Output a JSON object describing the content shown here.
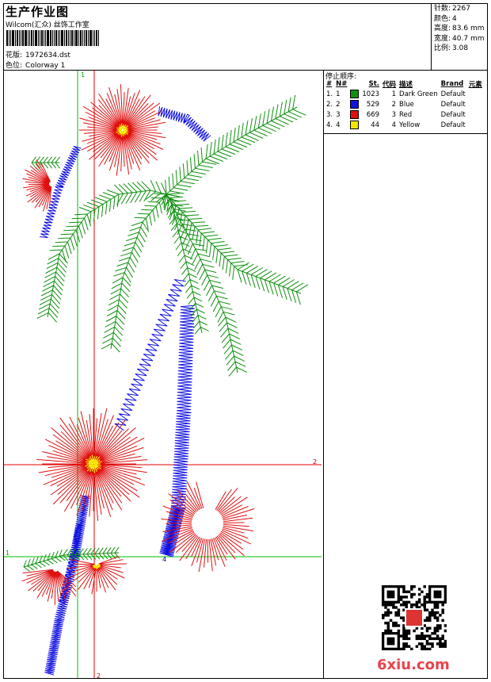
{
  "header": {
    "title": "生产作业图",
    "company": "Wilcom(汇众) 丝饰工作室",
    "design_label": "花版:",
    "design_value": "1972634.dst",
    "colorway_label": "色位:",
    "colorway_value": "Colorway 1"
  },
  "stats": [
    {
      "label": "针数:",
      "value": "2267"
    },
    {
      "label": "颜色:",
      "value": "4"
    },
    {
      "label": "高度:",
      "value": "83.6 mm"
    },
    {
      "label": "宽度:",
      "value": "40.7 mm"
    },
    {
      "label": "比例:",
      "value": "3.08"
    }
  ],
  "stop_sequence": {
    "title": "停止顺序:",
    "headers": [
      "#",
      "N#",
      "St.",
      "代码",
      "描述",
      "Brand",
      "元素"
    ],
    "rows": [
      {
        "idx": "1.",
        "n": "1",
        "color": "#109010",
        "st": "1023",
        "code": "1",
        "desc": "Dark Green",
        "brand": "Default"
      },
      {
        "idx": "2.",
        "n": "2",
        "color": "#1010e0",
        "st": "529",
        "code": "2",
        "desc": "Blue",
        "brand": "Default"
      },
      {
        "idx": "3.",
        "n": "3",
        "color": "#e01010",
        "st": "669",
        "code": "3",
        "desc": "Red",
        "brand": "Default"
      },
      {
        "idx": "4.",
        "n": "4",
        "color": "#f5e600",
        "st": "44",
        "code": "4",
        "desc": "Yellow",
        "brand": "Default"
      }
    ]
  },
  "guides": {
    "v1": "1",
    "v2": "2",
    "h1": "1",
    "h2": "2",
    "marker": "4"
  },
  "watermark": "6xiu.com",
  "colors": {
    "green": "#109010",
    "blue": "#1010e0",
    "red": "#e01010",
    "yellow": "#f5e600",
    "guide_green": "#00c000",
    "guide_red": "#e00000"
  }
}
